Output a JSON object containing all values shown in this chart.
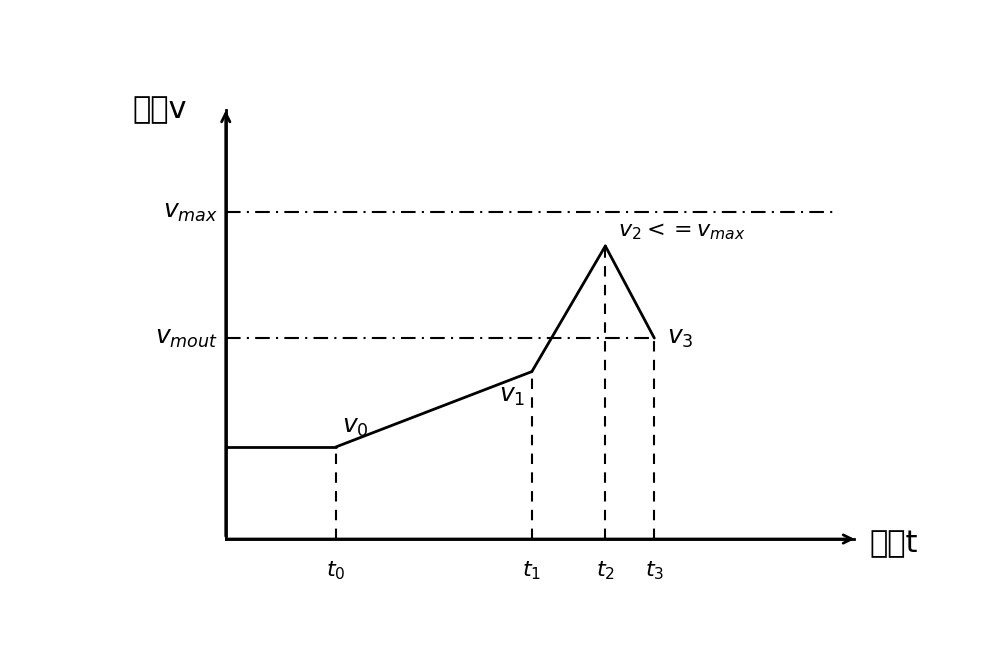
{
  "title": "",
  "xlabel_cn": "时间t",
  "ylabel_cn": "速度v",
  "bg_color": "#ffffff",
  "line_color": "#000000",
  "v0": 0.22,
  "v1": 0.4,
  "v2": 0.7,
  "v3": 0.48,
  "vmout": 0.48,
  "vmax": 0.78,
  "t0": 0.18,
  "t1": 0.5,
  "t2": 0.62,
  "t3": 0.7,
  "figsize": [
    10.0,
    6.63
  ],
  "dpi": 100
}
